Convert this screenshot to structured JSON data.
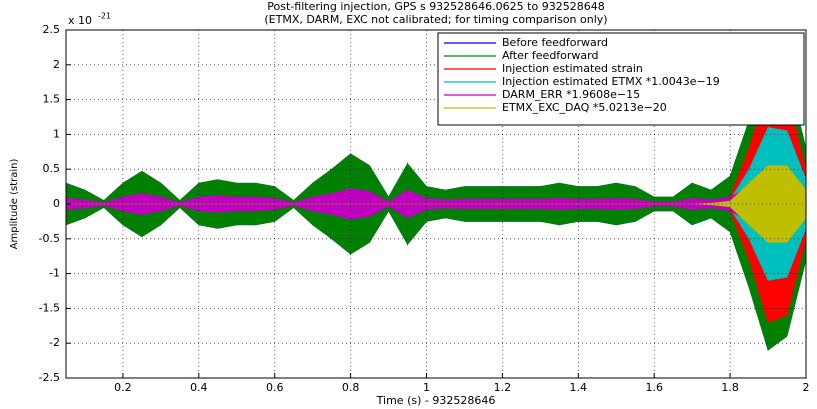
{
  "chart_data": {
    "type": "envelope",
    "title": "Post-filtering injection, GPS s 932528646.0625 to 932528648",
    "subtitle": "(ETMX, DARM, EXC not calibrated; for timing comparison only)",
    "x_label": "Time (s) - 932528646",
    "y_label": "Amplitude (strain)",
    "y_scale_label": "x 10",
    "y_scale_exponent": "-21",
    "x": [
      0.05,
      0.1,
      0.15,
      0.2,
      0.25,
      0.3,
      0.35,
      0.4,
      0.45,
      0.5,
      0.55,
      0.6,
      0.65,
      0.7,
      0.75,
      0.8,
      0.85,
      0.9,
      0.95,
      1.0,
      1.05,
      1.1,
      1.15,
      1.2,
      1.25,
      1.3,
      1.35,
      1.4,
      1.45,
      1.5,
      1.55,
      1.6,
      1.65,
      1.7,
      1.75,
      1.8,
      1.85,
      1.9,
      1.95,
      2.0
    ],
    "series": [
      {
        "name": "Before feedforward",
        "color": "#0000ff",
        "values": [
          0.3,
          0.2,
          0.05,
          0.3,
          0.47,
          0.3,
          0.05,
          0.3,
          0.35,
          0.3,
          0.3,
          0.25,
          0.05,
          0.3,
          0.5,
          0.72,
          0.55,
          0.1,
          0.58,
          0.25,
          0.2,
          0.25,
          0.25,
          0.25,
          0.25,
          0.25,
          0.3,
          0.25,
          0.25,
          0.3,
          0.25,
          0.1,
          0.1,
          0.3,
          0.2,
          0.4,
          1.2,
          2.1,
          1.9,
          0.8
        ]
      },
      {
        "name": "After feedforward",
        "color": "#008000",
        "values": [
          0.3,
          0.2,
          0.05,
          0.3,
          0.47,
          0.3,
          0.05,
          0.3,
          0.35,
          0.3,
          0.3,
          0.25,
          0.05,
          0.3,
          0.5,
          0.72,
          0.55,
          0.1,
          0.58,
          0.25,
          0.2,
          0.25,
          0.25,
          0.25,
          0.25,
          0.25,
          0.3,
          0.25,
          0.25,
          0.3,
          0.25,
          0.1,
          0.1,
          0.3,
          0.2,
          0.4,
          1.2,
          2.1,
          1.9,
          0.8
        ]
      },
      {
        "name": "Injection estimated strain",
        "color": "#ff0000",
        "values": [
          0,
          0,
          0,
          0,
          0,
          0,
          0,
          0,
          0,
          0,
          0,
          0,
          0,
          0,
          0,
          0,
          0,
          0,
          0,
          0,
          0,
          0,
          0,
          0,
          0,
          0,
          0,
          0,
          0,
          0,
          0,
          0,
          0,
          0,
          0.02,
          0.1,
          0.8,
          1.7,
          1.6,
          0.5
        ]
      },
      {
        "name": "Injection estimated ETMX *1.0043e−19",
        "color": "#00bfbf",
        "values": [
          0,
          0,
          0,
          0,
          0,
          0,
          0,
          0,
          0,
          0,
          0,
          0,
          0,
          0,
          0,
          0,
          0,
          0,
          0,
          0,
          0,
          0,
          0,
          0,
          0,
          0,
          0,
          0,
          0,
          0,
          0,
          0,
          0,
          0,
          0.01,
          0.06,
          0.5,
          1.1,
          1.05,
          0.35
        ]
      },
      {
        "name": "DARM_ERR *1.9608e−15",
        "color": "#bf00bf",
        "values": [
          0.08,
          0.06,
          0.02,
          0.1,
          0.15,
          0.1,
          0.02,
          0.1,
          0.12,
          0.1,
          0.1,
          0.08,
          0.02,
          0.1,
          0.15,
          0.22,
          0.18,
          0.03,
          0.2,
          0.08,
          0.06,
          0.07,
          0.07,
          0.07,
          0.07,
          0.07,
          0.08,
          0.07,
          0.07,
          0.08,
          0.07,
          0.03,
          0.03,
          0.08,
          0.06,
          0.1,
          0.25,
          0.45,
          0.4,
          0.15
        ]
      },
      {
        "name": "ETMX_EXC_DAQ *5.0213e−20",
        "color": "#bfbf00",
        "values": [
          0,
          0,
          0,
          0,
          0,
          0,
          0,
          0,
          0,
          0,
          0,
          0,
          0,
          0,
          0,
          0,
          0,
          0,
          0,
          0,
          0,
          0,
          0,
          0,
          0,
          0,
          0,
          0,
          0,
          0,
          0,
          0,
          0,
          0,
          0.01,
          0.04,
          0.3,
          0.55,
          0.55,
          0.2
        ]
      }
    ],
    "xlim": [
      0.05,
      2
    ],
    "ylim": [
      -2.5,
      2.5
    ],
    "xticks": [
      0.2,
      0.4,
      0.6,
      0.8,
      1,
      1.2,
      1.4,
      1.6,
      1.8,
      2
    ],
    "yticks": [
      -2.5,
      -2,
      -1.5,
      -1,
      -0.5,
      0,
      0.5,
      1,
      1.5,
      2,
      2.5
    ],
    "grid": true,
    "legend": "top-right"
  }
}
